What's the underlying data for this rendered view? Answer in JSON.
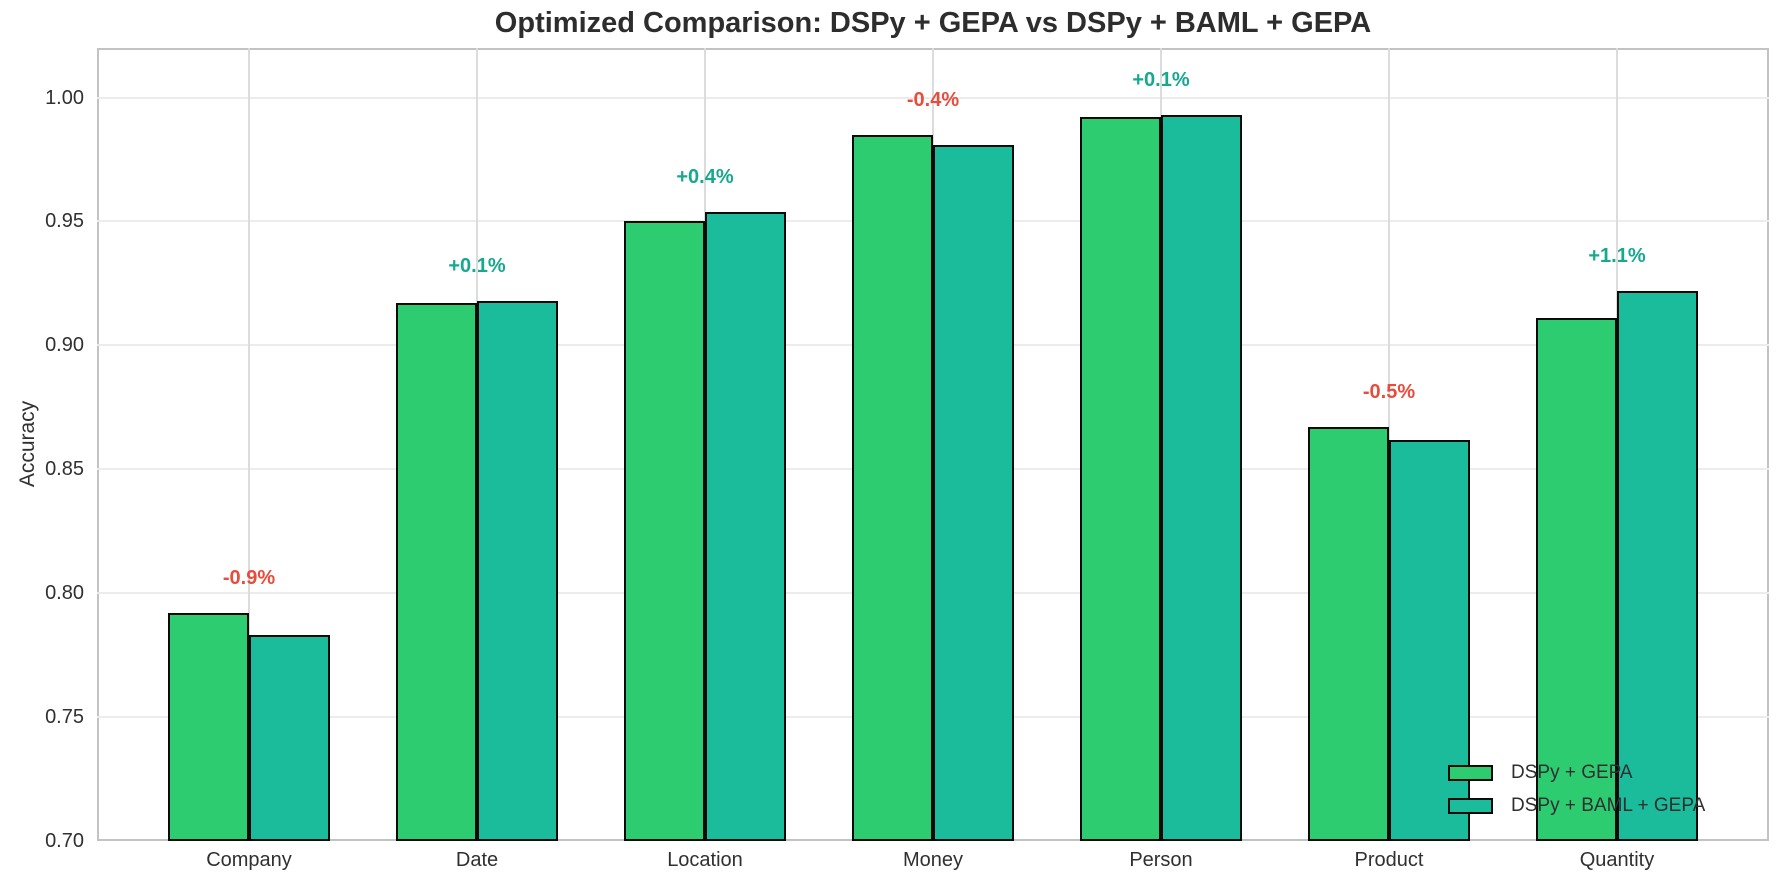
{
  "chart_data": {
    "type": "bar",
    "title": "Optimized Comparison: DSPy + GEPA vs DSPy + BAML + GEPA",
    "xlabel": "",
    "ylabel": "Accuracy",
    "categories": [
      "Company",
      "Date",
      "Location",
      "Money",
      "Person",
      "Product",
      "Quantity"
    ],
    "series": [
      {
        "name": "DSPy + GEPA",
        "color": "#2ecc71",
        "values": [
          0.792,
          0.917,
          0.95,
          0.985,
          0.992,
          0.867,
          0.911
        ]
      },
      {
        "name": "DSPy + BAML + GEPA",
        "color": "#1abc9c",
        "values": [
          0.783,
          0.918,
          0.954,
          0.981,
          0.993,
          0.862,
          0.922
        ]
      }
    ],
    "delta_labels": [
      "-0.9%",
      "+0.1%",
      "+0.4%",
      "-0.4%",
      "+0.1%",
      "-0.5%",
      "+1.1%"
    ],
    "delta_positive_color": "#17a88e",
    "delta_negative_color": "#e74c3c",
    "bar_edge_color": "#0a0a0a",
    "ylim": [
      0.7,
      1.02
    ],
    "yticks": [
      "0.70",
      "0.75",
      "0.80",
      "0.85",
      "0.90",
      "0.95",
      "1.00"
    ],
    "grid": true,
    "legend_position": "lower right"
  }
}
